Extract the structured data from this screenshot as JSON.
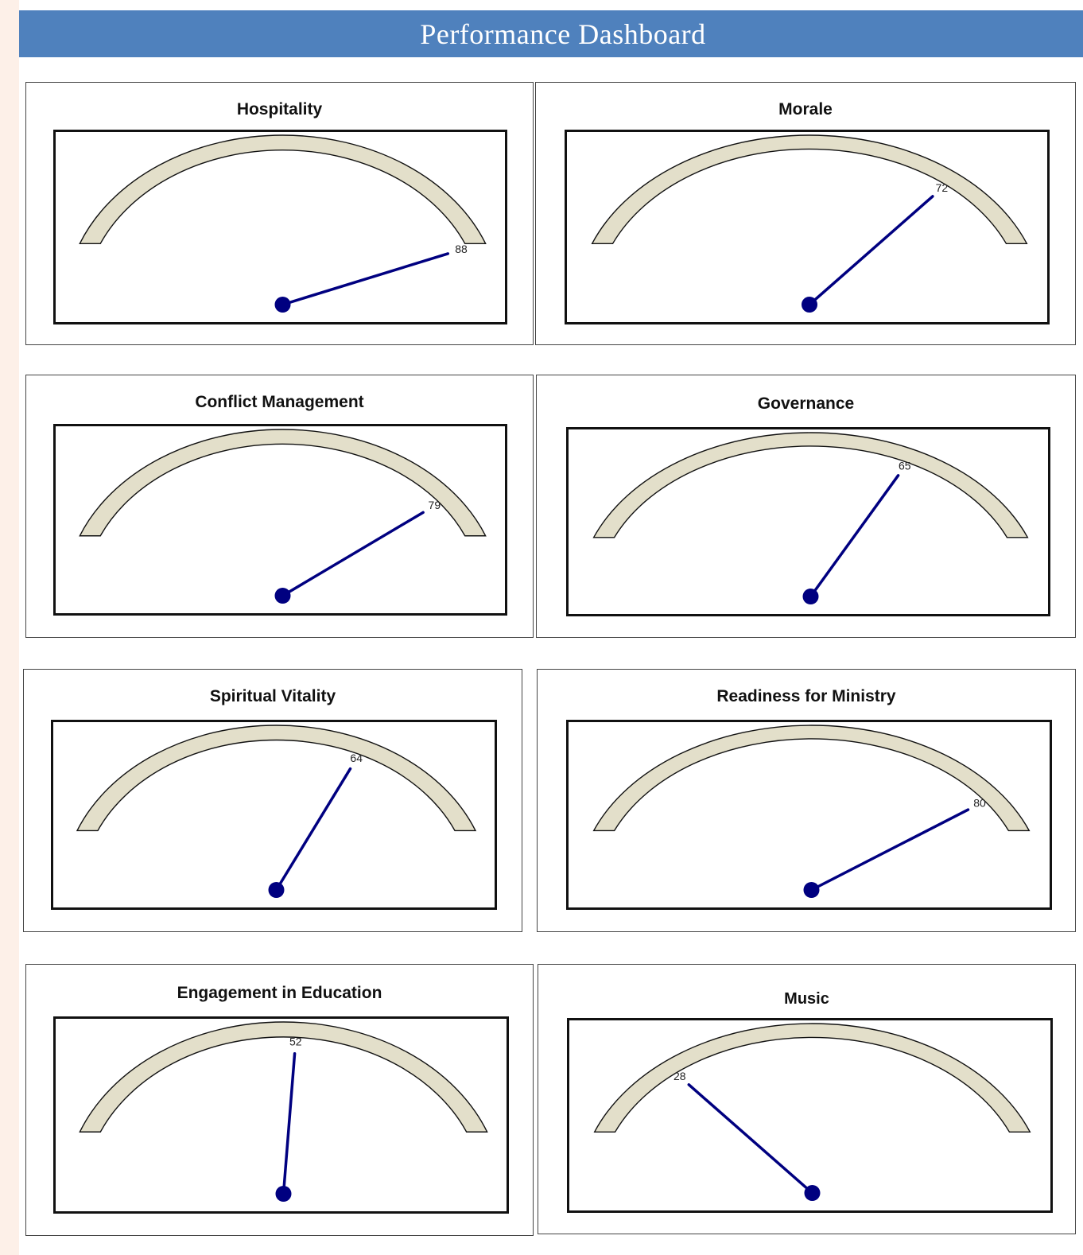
{
  "page": {
    "title": "Performance Dashboard"
  },
  "colors": {
    "header_bg": "#4f81bd",
    "arc_fill": "#e3dfca",
    "needle": "#000080"
  },
  "chart_data": [
    {
      "type": "gauge",
      "title": "Hospitality",
      "value": 88,
      "range": [
        0,
        100
      ]
    },
    {
      "type": "gauge",
      "title": "Morale",
      "value": 72,
      "range": [
        0,
        100
      ]
    },
    {
      "type": "gauge",
      "title": "Conflict Management",
      "value": 79,
      "range": [
        0,
        100
      ]
    },
    {
      "type": "gauge",
      "title": "Governance",
      "value": 65,
      "range": [
        0,
        100
      ]
    },
    {
      "type": "gauge",
      "title": "Spiritual Vitality",
      "value": 64,
      "range": [
        0,
        100
      ]
    },
    {
      "type": "gauge",
      "title": "Readiness for Ministry",
      "value": 80,
      "range": [
        0,
        100
      ]
    },
    {
      "type": "gauge",
      "title": "Engagement in Education",
      "value": 52,
      "range": [
        0,
        100
      ]
    },
    {
      "type": "gauge",
      "title": "Music",
      "value": 28,
      "range": [
        0,
        100
      ]
    }
  ]
}
